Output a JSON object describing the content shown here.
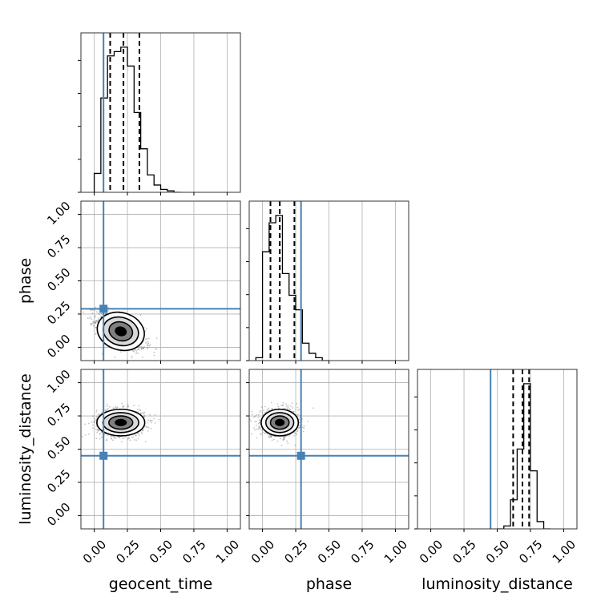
{
  "chart_data": {
    "type": "corner",
    "parameters": [
      "geocent_time",
      "phase",
      "luminosity_distance"
    ],
    "truths": [
      0.07,
      0.29,
      0.45
    ],
    "axis_range": [
      -0.1,
      1.1
    ],
    "tick_labels": [
      "0.00",
      "0.25",
      "0.50",
      "0.75",
      "1.00"
    ],
    "tick_values": [
      0,
      0.25,
      0.5,
      0.75,
      1.0
    ],
    "grid": true,
    "colors": {
      "truth": "#4682b4",
      "hist": "#000000",
      "grid": "#b0b0b0",
      "scatter": "#555555"
    },
    "marginals": [
      {
        "parameter": "geocent_time",
        "bin_edges": [
          0.0,
          0.05,
          0.1,
          0.15,
          0.2,
          0.25,
          0.3,
          0.35,
          0.4,
          0.45,
          0.5,
          0.55,
          0.6,
          0.65
        ],
        "density": [
          0.13,
          0.65,
          0.94,
          0.97,
          1.0,
          0.87,
          0.55,
          0.3,
          0.12,
          0.05,
          0.02,
          0.01,
          0.0
        ],
        "quantiles": [
          0.12,
          0.22,
          0.34
        ]
      },
      {
        "parameter": "phase",
        "bin_edges": [
          -0.05,
          0.0,
          0.05,
          0.1,
          0.15,
          0.2,
          0.25,
          0.3,
          0.35,
          0.4,
          0.45,
          0.5
        ],
        "density": [
          0.02,
          0.75,
          0.95,
          1.0,
          0.6,
          0.45,
          0.35,
          0.12,
          0.05,
          0.02,
          0.0
        ],
        "quantiles": [
          0.06,
          0.13,
          0.24
        ]
      },
      {
        "parameter": "luminosity_distance",
        "bin_edges": [
          0.5,
          0.55,
          0.6,
          0.65,
          0.7,
          0.75,
          0.8,
          0.85,
          0.9
        ],
        "density": [
          0.0,
          0.02,
          0.2,
          0.55,
          1.0,
          0.4,
          0.05,
          0.0
        ],
        "quantiles": [
          0.62,
          0.69,
          0.74
        ]
      }
    ],
    "joint": [
      {
        "x": "geocent_time",
        "y": "phase",
        "mean": [
          0.2,
          0.12
        ],
        "sigma": [
          0.09,
          0.07
        ],
        "corr": -0.6
      },
      {
        "x": "geocent_time",
        "y": "luminosity_distance",
        "mean": [
          0.2,
          0.7
        ],
        "sigma": [
          0.09,
          0.05
        ],
        "corr": 0.0
      },
      {
        "x": "phase",
        "y": "luminosity_distance",
        "mean": [
          0.13,
          0.7
        ],
        "sigma": [
          0.07,
          0.05
        ],
        "corr": 0.0
      }
    ]
  }
}
